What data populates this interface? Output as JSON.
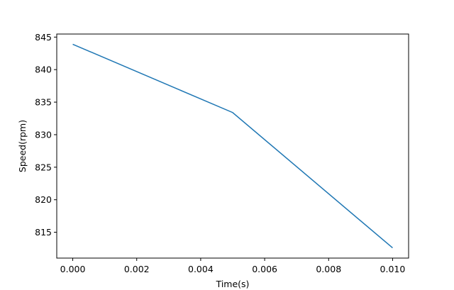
{
  "chart_data": {
    "type": "line",
    "x_label": "Time(s)",
    "y_label": "Speed(rpm)",
    "x": [
      0,
      0.005,
      0.01
    ],
    "series": [
      {
        "color": "#1f77b4",
        "values": [
          843.9,
          833.4,
          812.6
        ]
      }
    ],
    "xlim": [
      -0.0005,
      0.0105
    ],
    "xticks": [
      {
        "value": 0,
        "label": "0.000"
      },
      {
        "value": 0.002,
        "label": "0.002"
      },
      {
        "value": 0.004,
        "label": "0.004"
      },
      {
        "value": 0.006,
        "label": "0.006"
      },
      {
        "value": 0.008,
        "label": "0.008"
      },
      {
        "value": 0.01,
        "label": "0.010"
      }
    ],
    "ylim": [
      811.03,
      845.47
    ],
    "yticks": [
      815,
      820,
      825,
      830,
      835,
      840,
      845
    ]
  }
}
